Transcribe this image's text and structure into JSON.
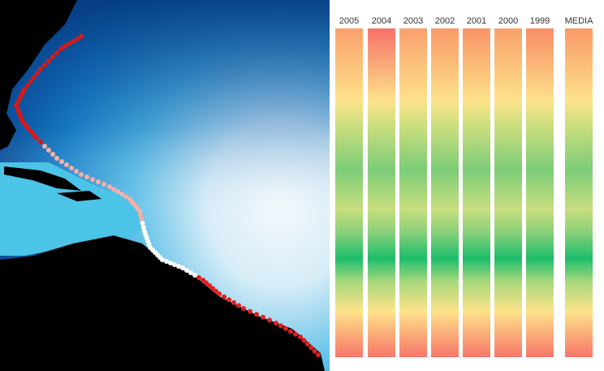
{
  "chart_data": {
    "type": "heatmap",
    "columns": [
      "2005",
      "2004",
      "2003",
      "2002",
      "2001",
      "2000",
      "1999",
      "MEDIA"
    ],
    "column_top_colors": [
      "#f9a16c",
      "#f7716a",
      "#f9a06c",
      "#f99a68",
      "#f99466",
      "#f9a06a",
      "#f98c66",
      "#f99a68"
    ],
    "color_profile": [
      {
        "pos": 0.0,
        "color": "@top"
      },
      {
        "pos": 0.22,
        "color": "#fde28a"
      },
      {
        "pos": 0.3,
        "color": "#c9de7e"
      },
      {
        "pos": 0.43,
        "color": "#7ccc78"
      },
      {
        "pos": 0.55,
        "color": "#c8de80"
      },
      {
        "pos": 0.62,
        "color": "#8bd07a"
      },
      {
        "pos": 0.7,
        "color": "#1cbd6c"
      },
      {
        "pos": 0.77,
        "color": "#a8d87c"
      },
      {
        "pos": 0.86,
        "color": "#fde38a"
      },
      {
        "pos": 1.0,
        "color": "#f7766a"
      }
    ]
  },
  "map": {
    "ocean_dark": "#063e8c",
    "ocean_mid": "#2fa8dc",
    "ocean_light": "#eaf4fb",
    "land": "#000000",
    "track_colors": [
      "#d81818",
      "#f4b0a8",
      "#ffffff",
      "#e02020"
    ]
  }
}
